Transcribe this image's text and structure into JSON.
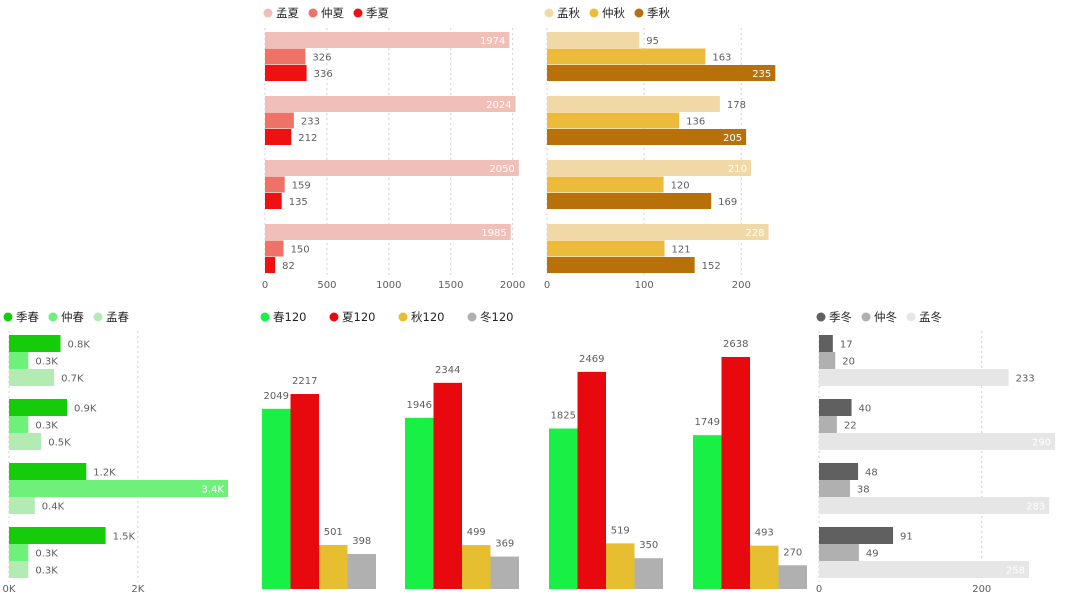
{
  "chart_data": [
    {
      "id": "summer",
      "type": "bar",
      "orientation": "horizontal",
      "legend": [
        "孟夏",
        "仲夏",
        "季夏"
      ],
      "colors": [
        "#f0bfb8",
        "#ee7366",
        "#ee1111"
      ],
      "series": [
        {
          "name": "孟夏",
          "values": [
            1974,
            2024,
            2050,
            1985
          ]
        },
        {
          "name": "仲夏",
          "values": [
            326,
            233,
            159,
            150
          ]
        },
        {
          "name": "季夏",
          "values": [
            336,
            212,
            135,
            82
          ]
        }
      ],
      "xlim": [
        0,
        2100
      ],
      "xticks": [
        0,
        500,
        1000,
        1500,
        2000
      ],
      "xtick_labels": [
        "0",
        "500",
        "1000",
        "1500",
        "2000"
      ]
    },
    {
      "id": "autumn",
      "type": "bar",
      "orientation": "horizontal",
      "legend": [
        "孟秋",
        "仲秋",
        "季秋"
      ],
      "colors": [
        "#f0d9a6",
        "#ecbb3c",
        "#b8700a"
      ],
      "series": [
        {
          "name": "孟秋",
          "values": [
            95,
            178,
            210,
            228
          ]
        },
        {
          "name": "仲秋",
          "values": [
            163,
            136,
            120,
            121
          ]
        },
        {
          "name": "季秋",
          "values": [
            235,
            205,
            169,
            152
          ]
        }
      ],
      "xlim": [
        0,
        245
      ],
      "xticks": [
        0,
        100,
        200
      ],
      "xtick_labels": [
        "0",
        "100",
        "200"
      ]
    },
    {
      "id": "spring",
      "type": "bar",
      "orientation": "horizontal",
      "legend": [
        "季春",
        "仲春",
        "孟春"
      ],
      "colors": [
        "#14cc0a",
        "#6ff07a",
        "#b2ecb2"
      ],
      "series": [
        {
          "name": "季春",
          "values": [
            800,
            900,
            1200,
            1500
          ],
          "labels": [
            "0.8K",
            "0.9K",
            "1.2K",
            "1.5K"
          ]
        },
        {
          "name": "仲春",
          "values": [
            300,
            300,
            3400,
            300
          ],
          "labels": [
            "0.3K",
            "0.3K",
            "3.4K",
            "0.3K"
          ]
        },
        {
          "name": "孟春",
          "values": [
            700,
            500,
            400,
            300
          ],
          "labels": [
            "0.7K",
            "0.5K",
            "0.4K",
            "0.3K"
          ]
        }
      ],
      "xlim": [
        0,
        3400
      ],
      "xticks": [
        0,
        2000
      ],
      "xtick_labels": [
        "0K",
        "2K"
      ]
    },
    {
      "id": "season120",
      "type": "bar",
      "orientation": "vertical",
      "legend": [
        "春120",
        "夏120",
        "秋120",
        "冬120"
      ],
      "colors": [
        "#18f045",
        "#e8090f",
        "#e6be30",
        "#b0b0b0"
      ],
      "series": [
        {
          "name": "春120",
          "values": [
            2049,
            1946,
            1825,
            1749
          ]
        },
        {
          "name": "夏120",
          "values": [
            2217,
            2344,
            2469,
            2638
          ]
        },
        {
          "name": "秋120",
          "values": [
            501,
            499,
            519,
            493
          ]
        },
        {
          "name": "冬120",
          "values": [
            398,
            369,
            350,
            270
          ]
        }
      ],
      "ylim": [
        0,
        2638
      ]
    },
    {
      "id": "winter",
      "type": "bar",
      "orientation": "horizontal",
      "legend": [
        "季冬",
        "仲冬",
        "孟冬"
      ],
      "colors": [
        "#606060",
        "#b0b0b0",
        "#e6e6e6"
      ],
      "series": [
        {
          "name": "季冬",
          "values": [
            17,
            40,
            48,
            91
          ]
        },
        {
          "name": "仲冬",
          "values": [
            20,
            22,
            38,
            49
          ]
        },
        {
          "name": "孟冬",
          "values": [
            233,
            290,
            283,
            258
          ]
        }
      ],
      "xlim": [
        0,
        290
      ],
      "xticks": [
        0,
        200
      ],
      "xtick_labels": [
        "0",
        "200"
      ]
    }
  ]
}
